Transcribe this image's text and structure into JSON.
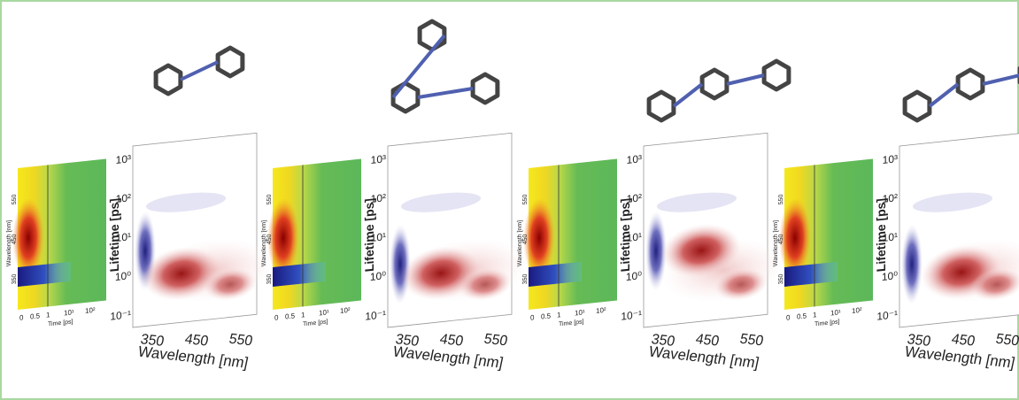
{
  "panels": [
    {
      "heatmap": {
        "y_label": "Wavelength [nm]",
        "y_ticks": [
          "350",
          "450",
          "550"
        ],
        "x_label": "Time [ps]",
        "x_ticks": [
          "0",
          "0.5",
          "1",
          "10¹",
          "10²"
        ]
      },
      "lda": {
        "y_label": "Lifetime [ps]",
        "y_ticks": [
          "10³",
          "10²",
          "10¹",
          "10⁰",
          "10⁻¹"
        ],
        "x_label": "Wavelength [nm]",
        "x_ticks": [
          "350",
          "450",
          "550"
        ]
      }
    },
    {
      "heatmap": {
        "y_label": "Wavelength [nm]",
        "y_ticks": [
          "350",
          "450",
          "550"
        ],
        "x_label": "Time [ps]",
        "x_ticks": [
          "0",
          "0.5",
          "1",
          "10¹",
          "10²"
        ]
      },
      "lda": {
        "y_label": "Lifetime [ps]",
        "y_ticks": [
          "10³",
          "10²",
          "10¹",
          "10⁰",
          "10⁻¹"
        ],
        "x_label": "Wavelength [nm]",
        "x_ticks": [
          "350",
          "450",
          "550"
        ]
      }
    },
    {
      "heatmap": {
        "y_label": "Wavelength [nm]",
        "y_ticks": [
          "350",
          "450",
          "550"
        ],
        "x_label": "Time [ps]",
        "x_ticks": [
          "0",
          "0.5",
          "1",
          "10¹",
          "10²"
        ]
      },
      "lda": {
        "y_label": "Lifetime [ps]",
        "y_ticks": [
          "10³",
          "10²",
          "10¹",
          "10⁰",
          "10⁻¹"
        ],
        "x_label": "Wavelength [nm]",
        "x_ticks": [
          "350",
          "450",
          "550"
        ]
      }
    },
    {
      "heatmap": {
        "y_label": "Wavelength [nm]",
        "y_ticks": [
          "350",
          "450",
          "550"
        ],
        "x_label": "Time [ps]",
        "x_ticks": [
          "0",
          "0.5",
          "1",
          "10¹",
          "10²"
        ]
      },
      "lda": {
        "y_label": "Lifetime [ps]",
        "y_ticks": [
          "10³",
          "10²",
          "10¹",
          "10⁰",
          "10⁻¹"
        ],
        "x_label": "Wavelength [nm]",
        "x_ticks": [
          "350",
          "450",
          "550"
        ]
      }
    }
  ]
}
